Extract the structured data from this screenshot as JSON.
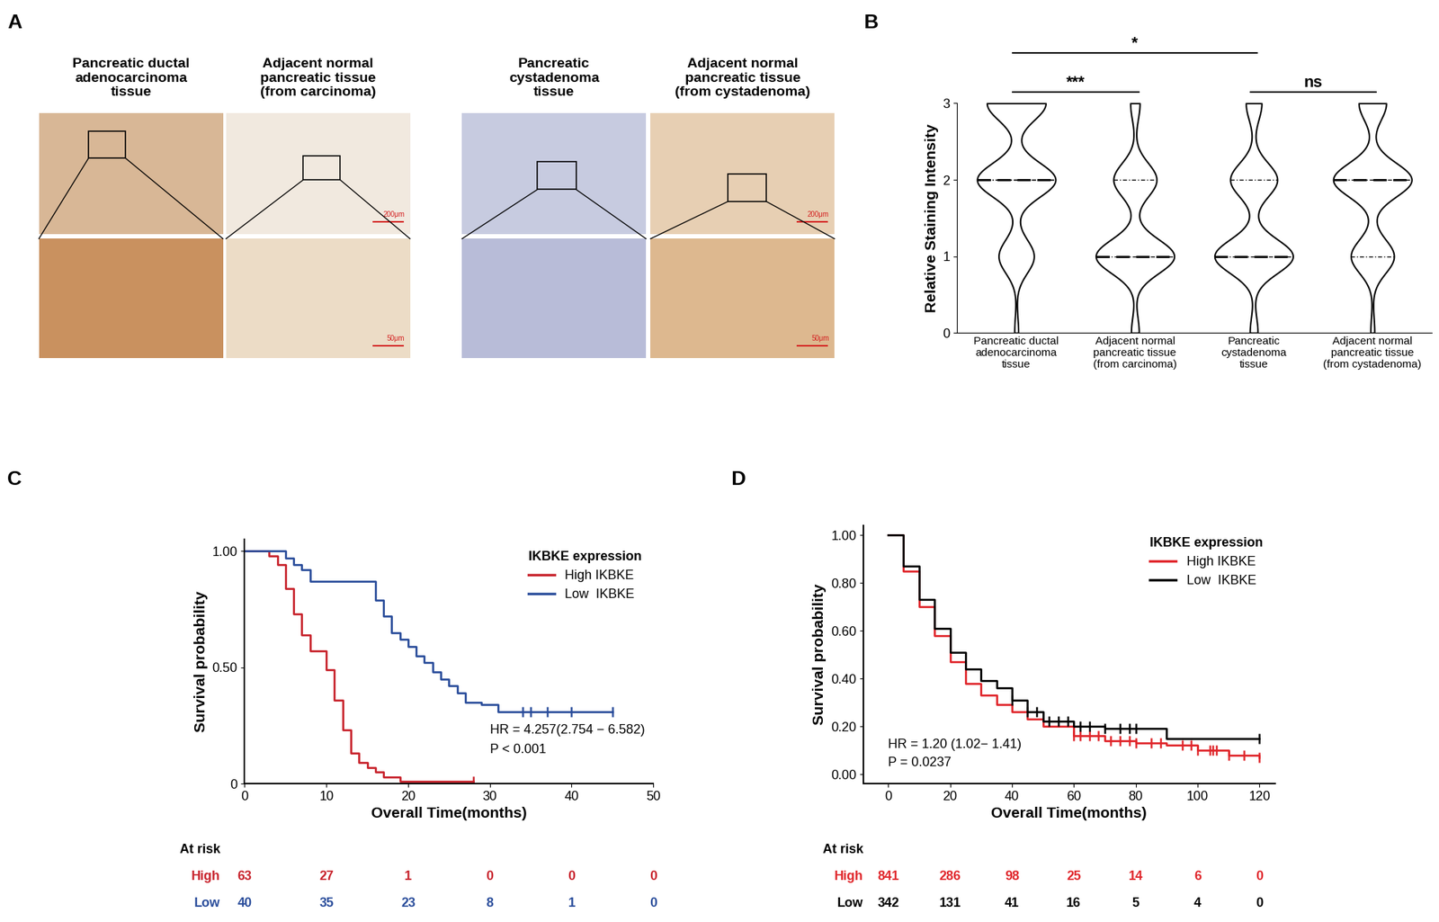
{
  "chart_data": [
    {
      "panel": "A",
      "type": "image_panel",
      "columns": [
        {
          "title": "Pancreatic ductal\nadenocarcinoma\ntissue"
        },
        {
          "title": "Adjacent normal\npancreatic tissue\n(from carcinoma)",
          "scale_bars": {
            "top": "200μm",
            "bottom": "50μm"
          }
        },
        {
          "title": "Pancreatic\ncystadenoma\ntissue"
        },
        {
          "title": "Adjacent normal\npancreatic tissue\n(from cystadenoma)",
          "scale_bars": {
            "top": "200μm",
            "bottom": "50μm"
          }
        }
      ]
    },
    {
      "panel": "B",
      "type": "violin",
      "ylabel": "Relative Staining Intensity",
      "ylim": [
        0,
        3
      ],
      "yticks": [
        0,
        1,
        2,
        3
      ],
      "categories": [
        "Pancreatic ductal\nadenocarcinoma\ntissue",
        "Adjacent normal\npancreatic tissue\n(from carcinoma)",
        "Pancreatic\ncystadenoma\ntissue",
        "Adjacent normal\npancreatic tissue\n(from cystadenoma)"
      ],
      "density_levels": [
        0,
        1,
        2,
        3
      ],
      "densities": [
        [
          0.05,
          0.45,
          1.0,
          0.75
        ],
        [
          0.1,
          1.0,
          0.55,
          0.12
        ],
        [
          0.1,
          1.0,
          0.6,
          0.2
        ],
        [
          0.05,
          0.55,
          1.0,
          0.35
        ]
      ],
      "medians": [
        2,
        1,
        1,
        2
      ],
      "quartiles": [
        [
          2,
          2
        ],
        [
          1,
          2
        ],
        [
          1,
          2
        ],
        [
          1,
          2
        ]
      ],
      "comparisons": [
        {
          "groups": [
            0,
            2
          ],
          "label": "*"
        },
        {
          "groups": [
            0,
            1
          ],
          "label": "***"
        },
        {
          "groups": [
            2,
            3
          ],
          "label": "ns"
        }
      ]
    },
    {
      "panel": "C",
      "type": "line",
      "line_style": "step",
      "xlabel": "Overall Time(months)",
      "ylabel": "Survival probability",
      "xlim": [
        0,
        50
      ],
      "ylim": [
        0,
        1.05
      ],
      "xticks": [
        0,
        10,
        20,
        30,
        40,
        50
      ],
      "yticks": [
        0,
        {
          "value": 0.5,
          "label": "0.50"
        },
        {
          "value": 1,
          "label": "1.00"
        }
      ],
      "legend": "upper right",
      "legend_title": "IKBKE expression",
      "series": [
        {
          "name": "High IKBKE",
          "color": "#c8232c",
          "x": [
            0,
            3,
            4,
            5,
            6,
            7,
            8,
            10,
            11,
            12,
            13,
            14,
            15,
            16,
            17,
            19,
            28
          ],
          "values": [
            1,
            0.98,
            0.94,
            0.84,
            0.73,
            0.64,
            0.57,
            0.49,
            0.36,
            0.23,
            0.13,
            0.09,
            0.07,
            0.05,
            0.03,
            0.01,
            0.01
          ],
          "censored": [
            28
          ]
        },
        {
          "name": "Low  IKBKE",
          "color": "#2a4d9b",
          "x": [
            0,
            5,
            6,
            7,
            8,
            16,
            17,
            18,
            19,
            20,
            21,
            22,
            23,
            24,
            25,
            26,
            27,
            29,
            31,
            45
          ],
          "values": [
            1,
            0.97,
            0.94,
            0.92,
            0.87,
            0.79,
            0.72,
            0.65,
            0.62,
            0.59,
            0.55,
            0.52,
            0.48,
            0.45,
            0.42,
            0.39,
            0.35,
            0.34,
            0.31,
            0.31
          ],
          "censored": [
            34,
            35,
            37,
            40,
            45
          ]
        }
      ],
      "annotations": [
        "HR = 4.257(2.754 − 6.582)",
        "P < 0.001"
      ],
      "at_risk": {
        "title": "At risk",
        "times": [
          0,
          10,
          20,
          30,
          40,
          50
        ],
        "rows": [
          {
            "name": "High",
            "values": [
              63,
              27,
              1,
              0,
              0,
              0
            ]
          },
          {
            "name": "Low",
            "values": [
              40,
              35,
              23,
              8,
              1,
              0
            ]
          }
        ]
      }
    },
    {
      "panel": "D",
      "type": "line",
      "line_style": "step",
      "xlabel": "Overall Time(months)",
      "ylabel": "Survival probability",
      "xlim": [
        -8,
        125
      ],
      "ylim": [
        -0.04,
        1.04
      ],
      "xticks": [
        0,
        20,
        40,
        60,
        80,
        100,
        120
      ],
      "yticks": [
        {
          "value": 0,
          "label": "0.00"
        },
        {
          "value": 0.2,
          "label": "0.20"
        },
        {
          "value": 0.4,
          "label": "0.40"
        },
        {
          "value": 0.6,
          "label": "0.60"
        },
        {
          "value": 0.8,
          "label": "0.80"
        },
        {
          "value": 1,
          "label": "1.00"
        }
      ],
      "legend": "upper right",
      "legend_title": "IKBKE expression",
      "series": [
        {
          "name": "High IKBKE",
          "color": "#e0262b",
          "x": [
            0,
            5,
            10,
            15,
            20,
            25,
            30,
            35,
            40,
            45,
            50,
            60,
            70,
            80,
            90,
            100,
            110,
            120
          ],
          "values": [
            1,
            0.85,
            0.7,
            0.58,
            0.47,
            0.38,
            0.33,
            0.29,
            0.26,
            0.23,
            0.2,
            0.16,
            0.14,
            0.13,
            0.12,
            0.1,
            0.08,
            0.07
          ],
          "censored": [
            60,
            62,
            65,
            68,
            72,
            75,
            78,
            80,
            85,
            88,
            95,
            98,
            100,
            104,
            105,
            106,
            110,
            115,
            120
          ]
        },
        {
          "name": "Low  IKBKE",
          "color": "#000000",
          "x": [
            0,
            5,
            10,
            15,
            20,
            25,
            30,
            35,
            40,
            45,
            50,
            60,
            70,
            80,
            90,
            100,
            110,
            120
          ],
          "values": [
            1,
            0.87,
            0.73,
            0.61,
            0.51,
            0.44,
            0.39,
            0.36,
            0.31,
            0.26,
            0.22,
            0.2,
            0.19,
            0.19,
            0.15,
            0.15,
            0.15,
            0.15
          ],
          "censored": [
            40,
            45,
            48,
            52,
            55,
            58,
            62,
            65,
            70,
            75,
            78,
            80,
            120
          ]
        }
      ],
      "annotations": [
        "HR = 1.20 (1.02− 1.41)",
        "P = 0.0237"
      ],
      "at_risk": {
        "title": "At risk",
        "times": [
          0,
          20,
          40,
          60,
          80,
          100,
          120
        ],
        "rows": [
          {
            "name": "High",
            "values": [
              841,
              286,
              98,
              25,
              14,
              6,
              0
            ]
          },
          {
            "name": "Low",
            "values": [
              342,
              131,
              41,
              16,
              5,
              4,
              0
            ]
          }
        ]
      }
    }
  ]
}
